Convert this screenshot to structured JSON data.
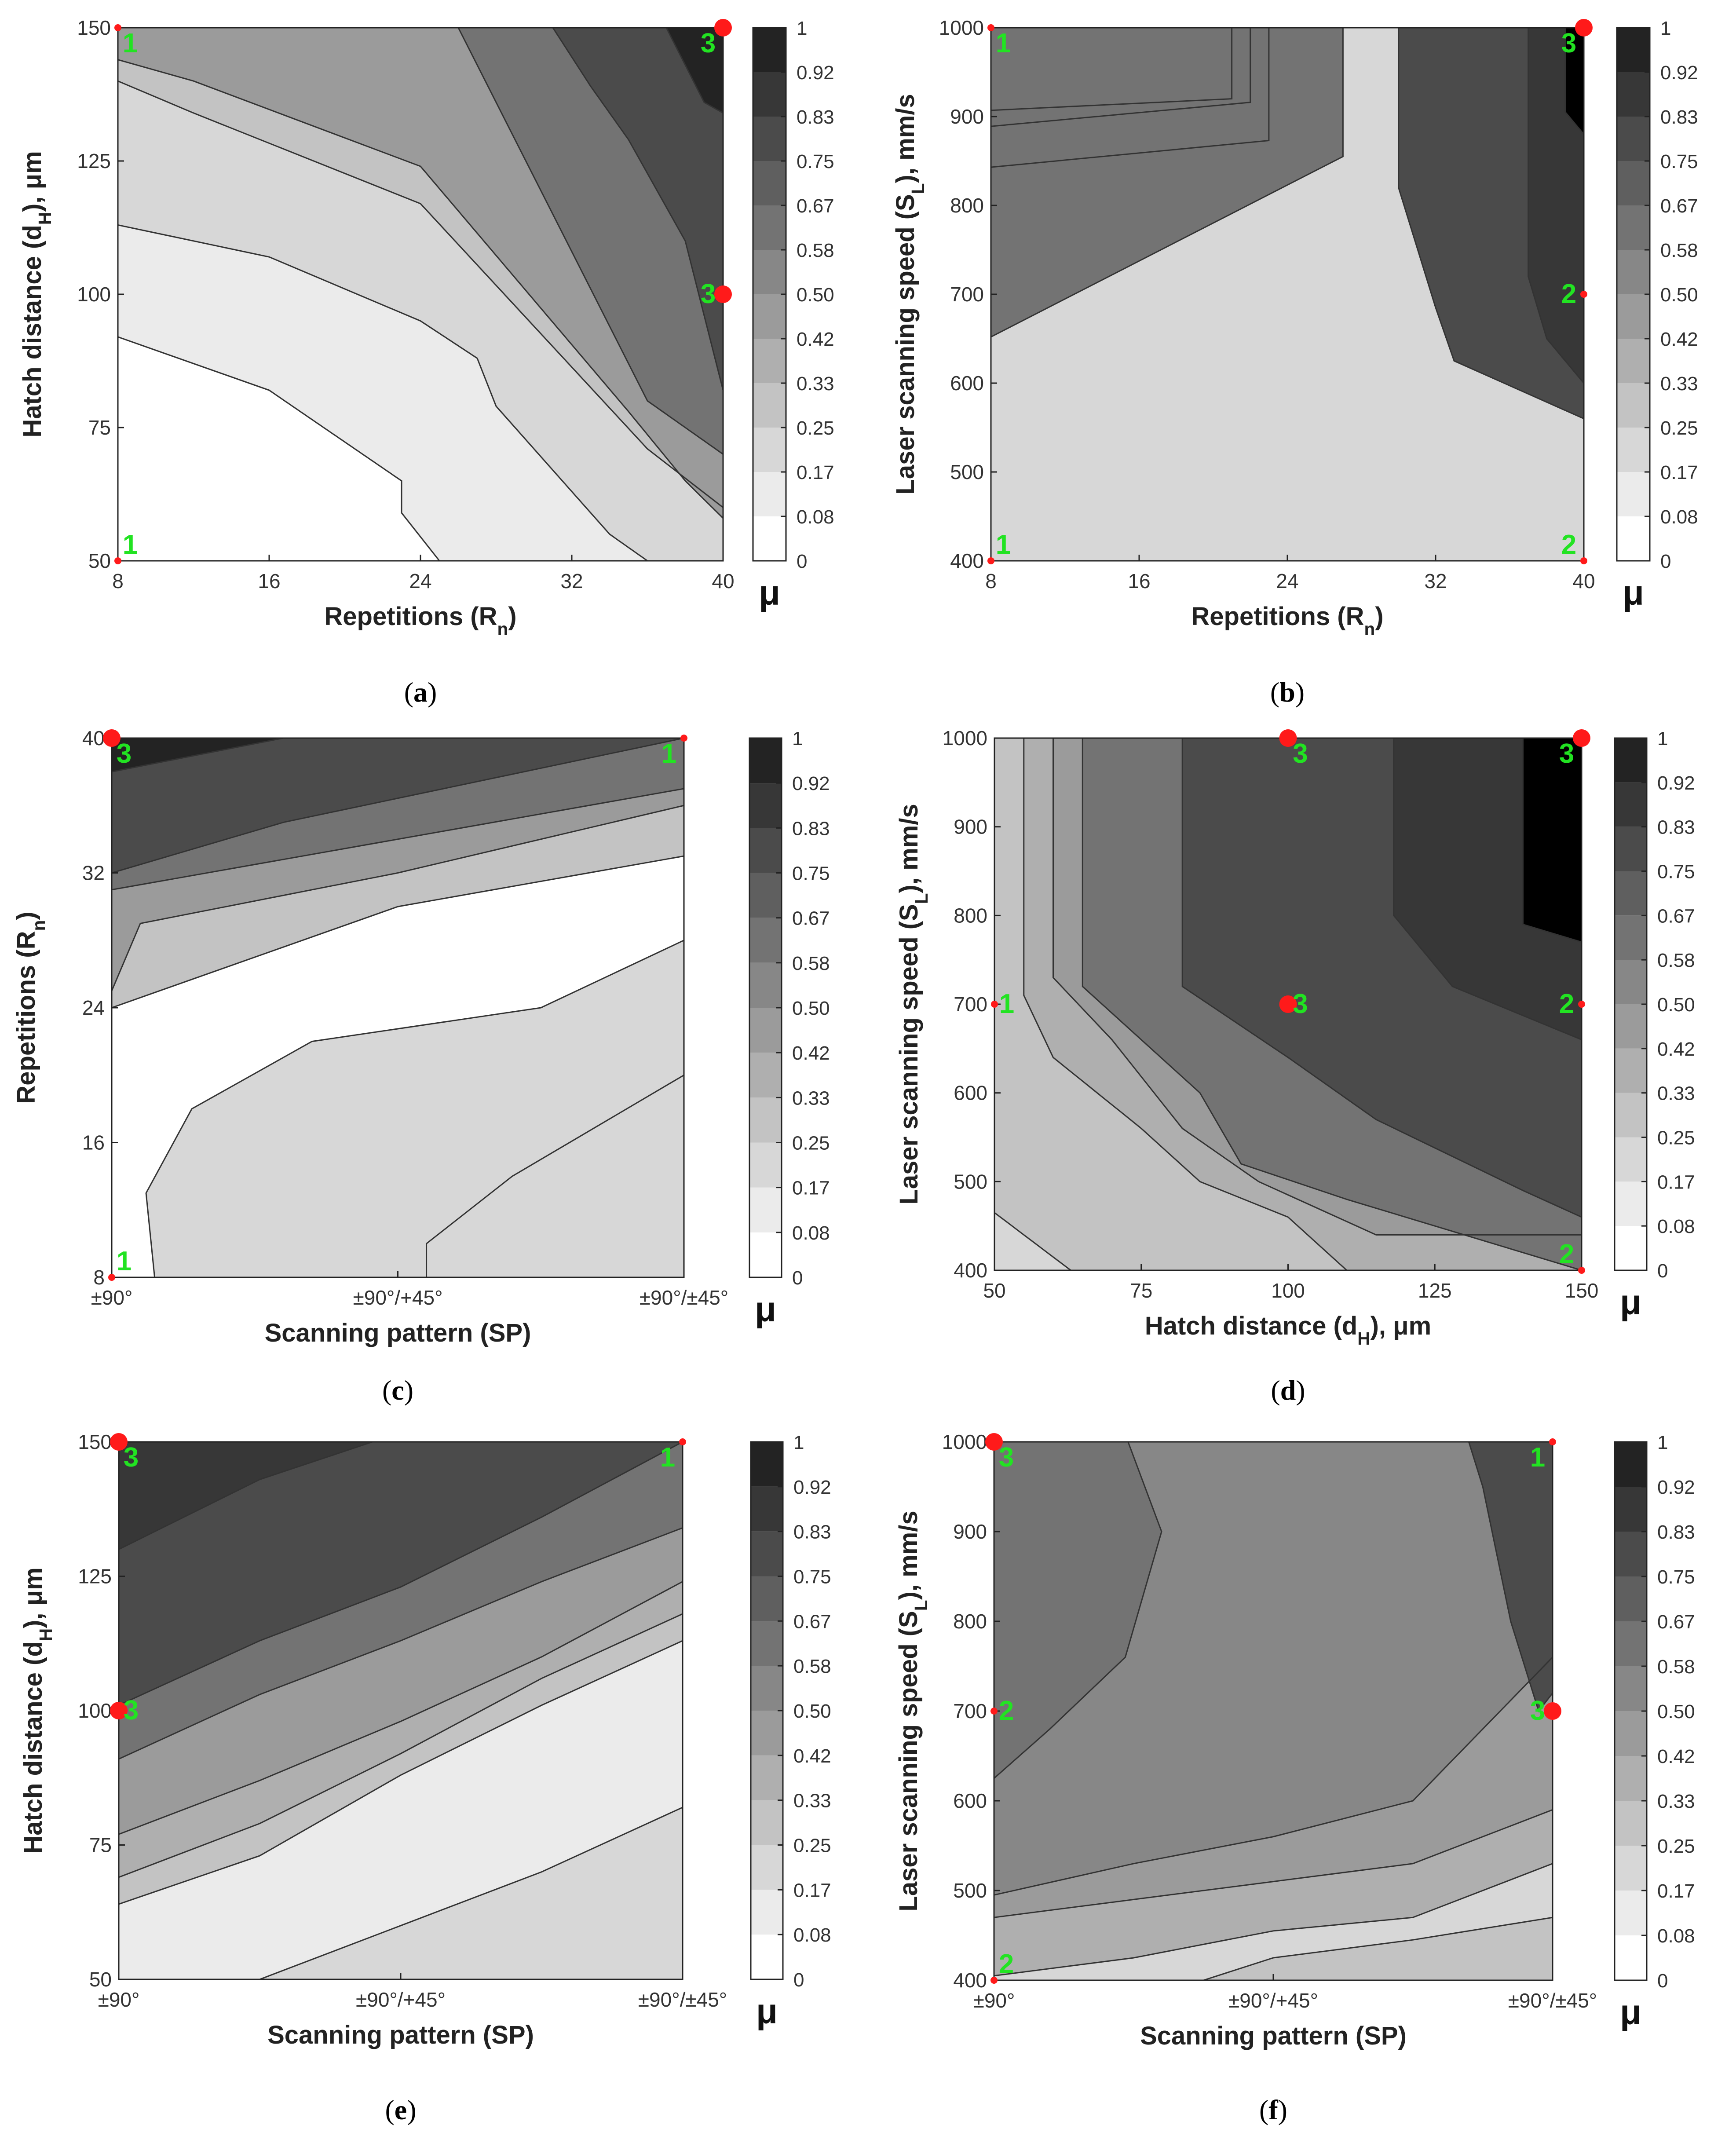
{
  "colorbar": {
    "label": "μ",
    "ticks": [
      "0",
      "0.08",
      "0.17",
      "0.25",
      "0.33",
      "0.42",
      "0.50",
      "0.58",
      "0.67",
      "0.75",
      "0.83",
      "0.92",
      "1"
    ],
    "levels": 12
  },
  "colors": {
    "point": "#ff1a1a",
    "point_label": "#22e322",
    "line": "#333333"
  },
  "chart_data": [
    {
      "type": "contour",
      "caption": "(a)",
      "xlabel": "Repetitions (R_n)",
      "ylabel": "Hatch distance (d_H), μm",
      "xlim": [
        8,
        40
      ],
      "ylim": [
        50,
        150
      ],
      "xticks": [
        "8",
        "16",
        "24",
        "32",
        "40"
      ],
      "yticks": [
        "50",
        "75",
        "100",
        "125",
        "150"
      ],
      "region_levels": [
        0,
        1,
        2,
        3,
        5,
        7,
        9,
        11
      ],
      "boundaries": [
        [
          [
            8,
            92
          ],
          [
            16,
            82
          ],
          [
            23,
            65
          ],
          [
            23,
            59
          ],
          [
            25,
            50
          ]
        ],
        [
          [
            8,
            113
          ],
          [
            16,
            107
          ],
          [
            24,
            95
          ],
          [
            27,
            88
          ],
          [
            28,
            79
          ],
          [
            34,
            55
          ],
          [
            36,
            50
          ]
        ],
        [
          [
            8,
            140
          ],
          [
            12,
            134
          ],
          [
            24,
            117
          ],
          [
            36,
            71
          ],
          [
            40,
            60
          ]
        ],
        [
          [
            8,
            144
          ],
          [
            12,
            140
          ],
          [
            24,
            124
          ],
          [
            35,
            78
          ],
          [
            38,
            65
          ],
          [
            40,
            58
          ]
        ],
        [
          [
            8,
            150
          ],
          [
            10,
            150
          ],
          [
            26,
            150
          ],
          [
            36,
            80
          ],
          [
            40,
            70
          ]
        ],
        [
          [
            31,
            150
          ],
          [
            33,
            139
          ],
          [
            35,
            129
          ],
          [
            38,
            110
          ],
          [
            40,
            82
          ]
        ],
        [
          [
            37,
            150
          ],
          [
            38,
            143
          ],
          [
            39,
            136
          ],
          [
            40,
            134
          ]
        ]
      ],
      "points": [
        {
          "x": 8,
          "y": 150,
          "label": "1",
          "big": false
        },
        {
          "x": 8,
          "y": 50,
          "label": "1",
          "big": false
        },
        {
          "x": 40,
          "y": 150,
          "label": "3",
          "big": true
        },
        {
          "x": 40,
          "y": 100,
          "label": "3",
          "big": true
        }
      ]
    },
    {
      "type": "contour",
      "caption": "(b)",
      "xlabel": "Repetitions (R_n)",
      "ylabel": "Laser scanning speed (S_L), mm/s",
      "xlim": [
        8,
        40
      ],
      "ylim": [
        400,
        1000
      ],
      "xticks": [
        "8",
        "16",
        "24",
        "32",
        "40"
      ],
      "yticks": [
        "400",
        "500",
        "600",
        "700",
        "800",
        "900",
        "1000"
      ],
      "region_levels": [
        2,
        3,
        4,
        5,
        7,
        9,
        10
      ],
      "boundaries": [
        [
          [
            8,
            907
          ],
          [
            21,
            920
          ],
          [
            21,
            1000
          ]
        ],
        [
          [
            8,
            889
          ],
          [
            22,
            916
          ],
          [
            22,
            1000
          ]
        ],
        [
          [
            8,
            843
          ],
          [
            23,
            873
          ],
          [
            23,
            1000
          ]
        ],
        [
          [
            8,
            652
          ],
          [
            27,
            855
          ],
          [
            27,
            1000
          ]
        ],
        [
          [
            30,
            1000
          ],
          [
            30,
            820
          ],
          [
            32,
            685
          ],
          [
            33,
            625
          ],
          [
            40,
            560
          ]
        ],
        [
          [
            37,
            1000
          ],
          [
            37,
            720
          ],
          [
            38,
            650
          ],
          [
            40,
            600
          ]
        ],
        [
          [
            39,
            1000
          ],
          [
            39,
            905
          ],
          [
            40,
            880
          ]
        ]
      ],
      "points": [
        {
          "x": 8,
          "y": 1000,
          "label": "1",
          "big": false
        },
        {
          "x": 8,
          "y": 400,
          "label": "1",
          "big": false
        },
        {
          "x": 40,
          "y": 1000,
          "label": "3",
          "big": true
        },
        {
          "x": 40,
          "y": 700,
          "label": "2",
          "big": false
        },
        {
          "x": 40,
          "y": 400,
          "label": "2",
          "big": false
        }
      ]
    },
    {
      "type": "contour",
      "caption": "(c)",
      "xlabel": "Scanning pattern (SP)",
      "ylabel": "Repetitions (R_n)",
      "xlim": [
        0,
        2
      ],
      "ylim": [
        8,
        40
      ],
      "xticks": [
        "±90°",
        "±90°/+45°",
        "±90°/±45°"
      ],
      "yticks": [
        "8",
        "16",
        "24",
        "32",
        "40"
      ],
      "region_levels": [
        0,
        1,
        2,
        3,
        5,
        7,
        9,
        11
      ],
      "boundaries": [
        [
          [
            0.55,
            8
          ],
          [
            1.1,
            8
          ],
          [
            1.1,
            10
          ],
          [
            1.4,
            14
          ],
          [
            2,
            20
          ]
        ],
        [
          [
            0.15,
            8
          ],
          [
            0.12,
            13
          ],
          [
            0.28,
            18
          ],
          [
            0.7,
            22
          ],
          [
            1.5,
            24
          ],
          [
            2,
            28
          ]
        ],
        [
          [
            0,
            24
          ],
          [
            0.5,
            27
          ],
          [
            1,
            30
          ],
          [
            2,
            33
          ]
        ],
        [
          [
            0,
            25
          ],
          [
            0.1,
            29
          ],
          [
            1,
            32
          ],
          [
            2,
            36
          ]
        ],
        [
          [
            0,
            31
          ],
          [
            1,
            34
          ],
          [
            2,
            37
          ]
        ],
        [
          [
            0,
            32
          ],
          [
            0.6,
            35
          ],
          [
            2,
            40
          ]
        ],
        [
          [
            0,
            38
          ],
          [
            0.3,
            39
          ],
          [
            0.6,
            40
          ]
        ]
      ],
      "points": [
        {
          "x": 0,
          "y": 40,
          "label": "3",
          "big": true
        },
        {
          "x": 0,
          "y": 8,
          "label": "1",
          "big": false
        },
        {
          "x": 2,
          "y": 40,
          "label": "1",
          "big": false
        }
      ]
    },
    {
      "type": "contour",
      "caption": "(d)",
      "xlabel": "Hatch distance (d_H), μm",
      "ylabel": "Laser scanning speed (S_L), mm/s",
      "xlim": [
        50,
        150
      ],
      "ylim": [
        400,
        1000
      ],
      "xticks": [
        "50",
        "75",
        "100",
        "125",
        "150"
      ],
      "yticks": [
        "400",
        "500",
        "600",
        "700",
        "800",
        "900",
        "1000"
      ],
      "region_levels": [
        2,
        3,
        4,
        5,
        7,
        9,
        10
      ],
      "boundaries": [
        [
          [
            50,
            465
          ],
          [
            63,
            400
          ]
        ],
        [
          [
            55,
            1000
          ],
          [
            55,
            710
          ],
          [
            60,
            640
          ],
          [
            75,
            560
          ],
          [
            85,
            500
          ],
          [
            100,
            460
          ],
          [
            110,
            400
          ]
        ],
        [
          [
            60,
            1000
          ],
          [
            60,
            730
          ],
          [
            70,
            660
          ],
          [
            82,
            560
          ],
          [
            95,
            500
          ],
          [
            115,
            440
          ],
          [
            150,
            440
          ]
        ],
        [
          [
            65,
            1000
          ],
          [
            65,
            720
          ],
          [
            85,
            600
          ],
          [
            92,
            520
          ],
          [
            110,
            480
          ],
          [
            150,
            400
          ]
        ],
        [
          [
            82,
            1000
          ],
          [
            82,
            720
          ],
          [
            100,
            640
          ],
          [
            115,
            570
          ],
          [
            140,
            490
          ],
          [
            150,
            460
          ]
        ],
        [
          [
            118,
            1000
          ],
          [
            118,
            800
          ],
          [
            128,
            720
          ],
          [
            150,
            660
          ]
        ],
        [
          [
            140,
            1000
          ],
          [
            140,
            790
          ],
          [
            150,
            770
          ]
        ]
      ],
      "points": [
        {
          "x": 100,
          "y": 1000,
          "label": "3",
          "big": true
        },
        {
          "x": 150,
          "y": 1000,
          "label": "3",
          "big": true
        },
        {
          "x": 50,
          "y": 700,
          "label": "1",
          "big": false
        },
        {
          "x": 100,
          "y": 700,
          "label": "3",
          "big": true
        },
        {
          "x": 150,
          "y": 700,
          "label": "2",
          "big": false
        },
        {
          "x": 150,
          "y": 400,
          "label": "2",
          "big": false
        }
      ]
    },
    {
      "type": "contour",
      "caption": "(e)",
      "xlabel": "Scanning pattern (SP)",
      "ylabel": "Hatch distance (d_H), μm",
      "xlim": [
        0,
        2
      ],
      "ylim": [
        50,
        150
      ],
      "xticks": [
        "±90°",
        "±90°/+45°",
        "±90°/±45°"
      ],
      "yticks": [
        "50",
        "75",
        "100",
        "125",
        "150"
      ],
      "region_levels": [
        1,
        2,
        3,
        4,
        5,
        7,
        9,
        10
      ],
      "boundaries": [
        [
          [
            0.5,
            50
          ],
          [
            1,
            60
          ],
          [
            1.5,
            70
          ],
          [
            2,
            82
          ]
        ],
        [
          [
            0,
            64
          ],
          [
            0.5,
            73
          ],
          [
            1,
            88
          ],
          [
            1.5,
            101
          ],
          [
            2,
            113
          ]
        ],
        [
          [
            0,
            69
          ],
          [
            0.5,
            79
          ],
          [
            1,
            92
          ],
          [
            1.5,
            106
          ],
          [
            2,
            118
          ]
        ],
        [
          [
            0,
            77
          ],
          [
            0.5,
            87
          ],
          [
            1,
            98
          ],
          [
            1.5,
            110
          ],
          [
            2,
            124
          ]
        ],
        [
          [
            0,
            91
          ],
          [
            0.5,
            103
          ],
          [
            1,
            113
          ],
          [
            1.5,
            124
          ],
          [
            2,
            134
          ]
        ],
        [
          [
            0,
            101
          ],
          [
            0.5,
            113
          ],
          [
            1,
            123
          ],
          [
            1.5,
            136
          ],
          [
            2,
            150
          ]
        ],
        [
          [
            0,
            130
          ],
          [
            0.5,
            143
          ],
          [
            0.9,
            150
          ]
        ]
      ],
      "points": [
        {
          "x": 0,
          "y": 150,
          "label": "3",
          "big": true
        },
        {
          "x": 0,
          "y": 100,
          "label": "3",
          "big": true
        },
        {
          "x": 2,
          "y": 150,
          "label": "1",
          "big": false
        }
      ]
    },
    {
      "type": "contour",
      "caption": "(f)",
      "xlabel": "Scanning pattern (SP)",
      "ylabel": "Laser scanning speed (S_L), mm/s",
      "xlim": [
        0,
        2
      ],
      "ylim": [
        400,
        1000
      ],
      "xticks": [
        "±90°",
        "±90°/+45°",
        "±90°/±45°"
      ],
      "yticks": [
        "400",
        "500",
        "600",
        "700",
        "800",
        "900",
        "1000"
      ],
      "region_levels": [
        2,
        3,
        4,
        5,
        6,
        7,
        9
      ],
      "boundaries": [
        [
          [
            0.75,
            400
          ],
          [
            1,
            425
          ],
          [
            1.5,
            445
          ],
          [
            2,
            470
          ]
        ],
        [
          [
            0,
            405
          ],
          [
            0.5,
            425
          ],
          [
            1,
            455
          ],
          [
            1.5,
            470
          ],
          [
            2,
            530
          ]
        ],
        [
          [
            0,
            470
          ],
          [
            0.5,
            490
          ],
          [
            1,
            510
          ],
          [
            1.5,
            530
          ],
          [
            2,
            590
          ]
        ],
        [
          [
            0,
            495
          ],
          [
            0.5,
            530
          ],
          [
            1,
            560
          ],
          [
            1.5,
            600
          ],
          [
            2,
            760
          ]
        ],
        [
          [
            0,
            625
          ],
          [
            0.2,
            680
          ],
          [
            0.47,
            760
          ],
          [
            0.6,
            900
          ],
          [
            0.48,
            1000
          ]
        ],
        [
          [
            1.7,
            1000
          ],
          [
            1.75,
            950
          ],
          [
            1.85,
            800
          ],
          [
            1.95,
            700
          ],
          [
            2,
            720
          ]
        ]
      ],
      "points": [
        {
          "x": 0,
          "y": 1000,
          "label": "3",
          "big": true
        },
        {
          "x": 2,
          "y": 1000,
          "label": "1",
          "big": false
        },
        {
          "x": 0,
          "y": 700,
          "label": "2",
          "big": false
        },
        {
          "x": 2,
          "y": 700,
          "label": "3",
          "big": true
        },
        {
          "x": 0,
          "y": 400,
          "label": "2",
          "big": false
        }
      ]
    }
  ]
}
